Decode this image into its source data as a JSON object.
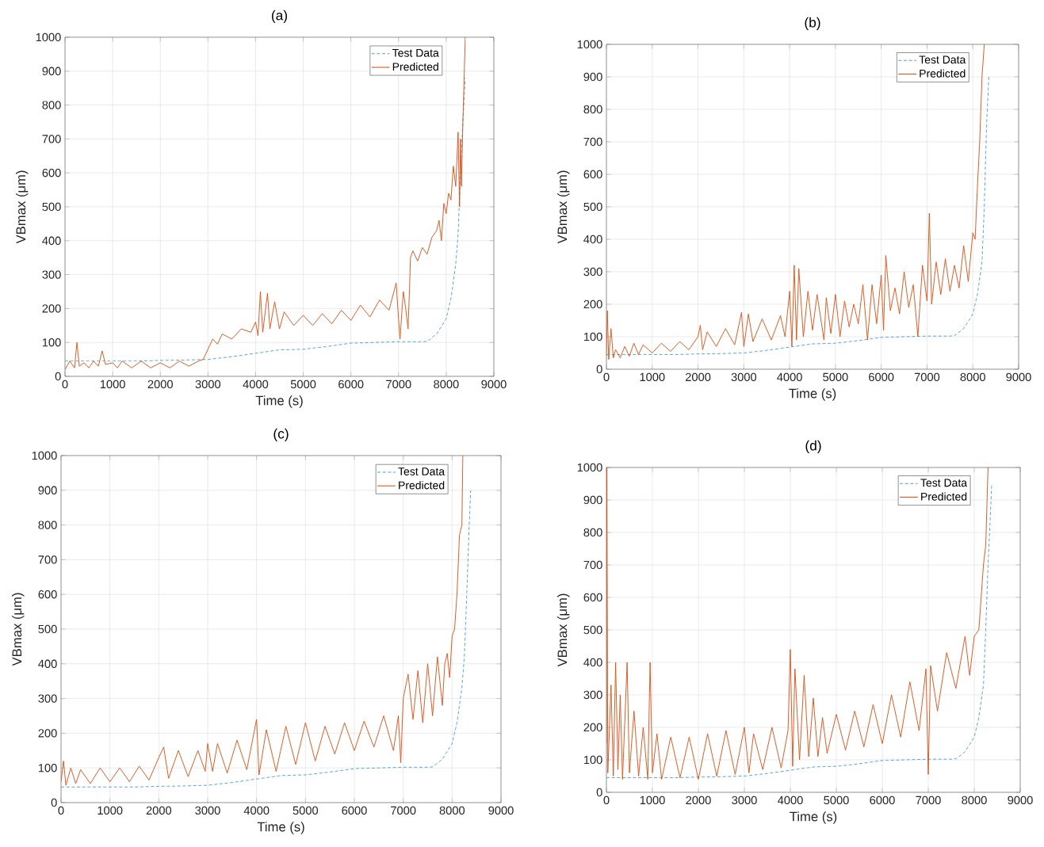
{
  "chart_data": [
    {
      "type": "line",
      "title": "(a)",
      "xlabel": "Time (s)",
      "ylabel": "VBmax (μm)",
      "xlim": [
        0,
        9000
      ],
      "ylim": [
        0,
        1000
      ],
      "xticks": [
        0,
        1000,
        2000,
        3000,
        4000,
        5000,
        6000,
        7000,
        8000,
        9000
      ],
      "yticks": [
        0,
        100,
        200,
        300,
        400,
        500,
        600,
        700,
        800,
        900,
        1000
      ],
      "grid": true,
      "legend": "top right",
      "series": [
        {
          "name": "Test Data",
          "color": "#4da3db",
          "line_style": "dashed",
          "x": [
            0,
            500,
            1000,
            1500,
            2000,
            2500,
            3000,
            3500,
            4000,
            4500,
            5000,
            5500,
            6000,
            6500,
            7000,
            7500,
            7600,
            7800,
            8000,
            8100,
            8200,
            8250,
            8300,
            8350,
            8400
          ],
          "values": [
            45,
            45,
            45,
            45,
            47,
            48,
            50,
            58,
            68,
            78,
            80,
            88,
            98,
            100,
            102,
            102,
            103,
            125,
            170,
            230,
            330,
            420,
            600,
            750,
            880
          ]
        },
        {
          "name": "Predicted",
          "color": "#d95319",
          "line_style": "solid",
          "x": [
            0,
            100,
            200,
            250,
            300,
            400,
            500,
            600,
            700,
            780,
            850,
            1000,
            1100,
            1200,
            1400,
            1600,
            1800,
            2000,
            2200,
            2400,
            2600,
            2800,
            2900,
            3000,
            3100,
            3200,
            3300,
            3500,
            3700,
            3900,
            4000,
            4050,
            4100,
            4150,
            4250,
            4300,
            4400,
            4500,
            4600,
            4800,
            5000,
            5200,
            5400,
            5600,
            5800,
            6000,
            6200,
            6400,
            6600,
            6800,
            6950,
            7000,
            7030,
            7100,
            7150,
            7200,
            7230,
            7250,
            7300,
            7400,
            7500,
            7600,
            7700,
            7800,
            7850,
            7900,
            7950,
            8000,
            8050,
            8100,
            8150,
            8200,
            8250,
            8280,
            8300,
            8320,
            8350,
            8380,
            8400
          ],
          "values": [
            20,
            45,
            25,
            100,
            30,
            40,
            25,
            45,
            30,
            75,
            35,
            40,
            25,
            45,
            25,
            45,
            25,
            40,
            25,
            45,
            30,
            45,
            50,
            80,
            110,
            95,
            125,
            110,
            140,
            130,
            160,
            120,
            250,
            130,
            245,
            140,
            220,
            140,
            190,
            150,
            180,
            150,
            185,
            155,
            195,
            165,
            210,
            175,
            225,
            195,
            275,
            170,
            110,
            250,
            200,
            140,
            260,
            350,
            370,
            340,
            380,
            360,
            410,
            430,
            460,
            400,
            510,
            480,
            540,
            520,
            620,
            560,
            720,
            500,
            700,
            560,
            750,
            900,
            1000
          ]
        }
      ]
    },
    {
      "type": "line",
      "title": "(b)",
      "xlabel": "Time (s)",
      "ylabel": "VBmax (μm)",
      "xlim": [
        0,
        9000
      ],
      "ylim": [
        0,
        1000
      ],
      "xticks": [
        0,
        1000,
        2000,
        3000,
        4000,
        5000,
        6000,
        7000,
        8000,
        9000
      ],
      "yticks": [
        0,
        100,
        200,
        300,
        400,
        500,
        600,
        700,
        800,
        900,
        1000
      ],
      "grid": true,
      "legend": "top right",
      "series": [
        {
          "name": "Test Data",
          "color": "#4da3db",
          "line_style": "dashed",
          "x": [
            0,
            500,
            1000,
            1500,
            2000,
            2500,
            3000,
            3500,
            4000,
            4500,
            5000,
            5500,
            6000,
            6500,
            7000,
            7500,
            7600,
            7800,
            8000,
            8100,
            8200,
            8250,
            8300,
            8350
          ],
          "values": [
            45,
            45,
            45,
            45,
            47,
            48,
            50,
            58,
            68,
            78,
            80,
            88,
            98,
            100,
            102,
            102,
            103,
            125,
            170,
            230,
            330,
            500,
            750,
            900
          ]
        },
        {
          "name": "Predicted",
          "color": "#d95319",
          "line_style": "solid",
          "x": [
            0,
            20,
            50,
            100,
            150,
            200,
            300,
            400,
            500,
            600,
            700,
            800,
            1000,
            1200,
            1400,
            1600,
            1800,
            2000,
            2050,
            2100,
            2200,
            2400,
            2600,
            2800,
            2950,
            3000,
            3100,
            3200,
            3400,
            3600,
            3800,
            3900,
            4000,
            4050,
            4100,
            4150,
            4200,
            4300,
            4400,
            4500,
            4600,
            4750,
            4800,
            4900,
            5000,
            5100,
            5200,
            5300,
            5400,
            5500,
            5600,
            5700,
            5800,
            5900,
            6000,
            6050,
            6100,
            6200,
            6300,
            6400,
            6500,
            6600,
            6700,
            6800,
            6900,
            7000,
            7050,
            7100,
            7200,
            7300,
            7400,
            7500,
            7600,
            7700,
            7800,
            7900,
            8000,
            8050,
            8100,
            8150,
            8200,
            8250
          ],
          "values": [
            40,
            180,
            30,
            125,
            35,
            60,
            35,
            70,
            40,
            80,
            45,
            75,
            50,
            80,
            55,
            85,
            60,
            100,
            135,
            60,
            115,
            70,
            125,
            75,
            175,
            70,
            170,
            85,
            155,
            90,
            165,
            100,
            240,
            70,
            320,
            90,
            310,
            100,
            240,
            120,
            230,
            90,
            220,
            110,
            230,
            100,
            210,
            130,
            200,
            140,
            260,
            90,
            260,
            140,
            290,
            120,
            350,
            180,
            250,
            170,
            300,
            190,
            260,
            100,
            320,
            210,
            480,
            200,
            330,
            230,
            340,
            240,
            320,
            250,
            380,
            270,
            420,
            400,
            560,
            700,
            900,
            1000
          ]
        }
      ]
    },
    {
      "type": "line",
      "title": "(c)",
      "xlabel": "Time (s)",
      "ylabel": "VBmax (μm)",
      "xlim": [
        0,
        9000
      ],
      "ylim": [
        0,
        1000
      ],
      "xticks": [
        0,
        1000,
        2000,
        3000,
        4000,
        5000,
        6000,
        7000,
        8000,
        9000
      ],
      "yticks": [
        0,
        100,
        200,
        300,
        400,
        500,
        600,
        700,
        800,
        900,
        1000
      ],
      "grid": true,
      "legend": "top right",
      "series": [
        {
          "name": "Test Data",
          "color": "#4da3db",
          "line_style": "dashed",
          "x": [
            0,
            500,
            1000,
            1500,
            2000,
            2500,
            3000,
            3500,
            4000,
            4500,
            5000,
            5500,
            6000,
            6500,
            7000,
            7500,
            7600,
            7800,
            8000,
            8100,
            8200,
            8250,
            8300,
            8350,
            8380
          ],
          "values": [
            45,
            45,
            45,
            45,
            47,
            48,
            50,
            58,
            68,
            78,
            80,
            88,
            98,
            100,
            102,
            102,
            103,
            125,
            170,
            230,
            330,
            420,
            600,
            800,
            900
          ]
        },
        {
          "name": "Predicted",
          "color": "#d95319",
          "line_style": "solid",
          "x": [
            0,
            50,
            100,
            200,
            300,
            400,
            600,
            800,
            1000,
            1200,
            1400,
            1600,
            1800,
            2000,
            2100,
            2200,
            2400,
            2600,
            2800,
            2950,
            3000,
            3100,
            3200,
            3400,
            3600,
            3800,
            4000,
            4050,
            4200,
            4400,
            4600,
            4800,
            5000,
            5200,
            5400,
            5600,
            5800,
            6000,
            6200,
            6400,
            6600,
            6800,
            6900,
            6950,
            7000,
            7100,
            7200,
            7300,
            7400,
            7500,
            7600,
            7700,
            7800,
            7850,
            7900,
            7950,
            8000,
            8050,
            8100,
            8150,
            8200,
            8220
          ],
          "values": [
            60,
            120,
            50,
            100,
            55,
            95,
            55,
            100,
            60,
            100,
            60,
            105,
            65,
            130,
            160,
            70,
            150,
            75,
            150,
            90,
            170,
            90,
            170,
            85,
            180,
            95,
            240,
            80,
            210,
            90,
            220,
            110,
            230,
            120,
            220,
            140,
            230,
            150,
            235,
            160,
            250,
            150,
            250,
            115,
            300,
            370,
            240,
            380,
            230,
            400,
            250,
            420,
            280,
            400,
            430,
            360,
            480,
            500,
            600,
            770,
            800,
            1000
          ]
        }
      ]
    },
    {
      "type": "line",
      "title": "(d)",
      "xlabel": "Time (s)",
      "ylabel": "VBmax (μm)",
      "xlim": [
        0,
        9000
      ],
      "ylim": [
        0,
        1000
      ],
      "xticks": [
        0,
        1000,
        2000,
        3000,
        4000,
        5000,
        6000,
        7000,
        8000,
        9000
      ],
      "yticks": [
        0,
        100,
        200,
        300,
        400,
        500,
        600,
        700,
        800,
        900,
        1000
      ],
      "grid": true,
      "legend": "top right",
      "series": [
        {
          "name": "Test Data",
          "color": "#4da3db",
          "line_style": "dashed",
          "x": [
            0,
            500,
            1000,
            1500,
            2000,
            2500,
            3000,
            3500,
            4000,
            4500,
            5000,
            5500,
            6000,
            6500,
            7000,
            7500,
            7600,
            7800,
            8000,
            8100,
            8200,
            8250,
            8300,
            8350,
            8380
          ],
          "values": [
            45,
            45,
            45,
            45,
            47,
            48,
            50,
            58,
            68,
            78,
            80,
            88,
            98,
            100,
            102,
            102,
            103,
            125,
            170,
            230,
            330,
            500,
            700,
            850,
            950
          ]
        },
        {
          "name": "Predicted",
          "color": "#d95319",
          "line_style": "solid",
          "x": [
            0,
            10,
            30,
            100,
            150,
            200,
            250,
            300,
            350,
            450,
            500,
            600,
            700,
            800,
            900,
            950,
            1000,
            1100,
            1200,
            1400,
            1600,
            1800,
            2000,
            2200,
            2400,
            2600,
            2800,
            3000,
            3100,
            3200,
            3400,
            3600,
            3800,
            3950,
            4000,
            4050,
            4100,
            4200,
            4300,
            4400,
            4500,
            4600,
            4700,
            4800,
            5000,
            5200,
            5400,
            5600,
            5800,
            6000,
            6200,
            6400,
            6600,
            6800,
            6950,
            7000,
            7050,
            7200,
            7400,
            7600,
            7800,
            7900,
            8000,
            8100,
            8200,
            8250,
            8300
          ],
          "values": [
            150,
            1000,
            60,
            330,
            50,
            400,
            70,
            300,
            40,
            400,
            60,
            250,
            50,
            200,
            40,
            400,
            60,
            180,
            40,
            170,
            45,
            170,
            40,
            180,
            50,
            190,
            55,
            200,
            60,
            180,
            70,
            200,
            75,
            190,
            440,
            80,
            380,
            100,
            360,
            110,
            290,
            110,
            230,
            120,
            240,
            130,
            250,
            140,
            270,
            150,
            300,
            170,
            340,
            190,
            380,
            55,
            390,
            250,
            430,
            320,
            480,
            360,
            480,
            500,
            700,
            760,
            1000
          ]
        }
      ]
    }
  ]
}
